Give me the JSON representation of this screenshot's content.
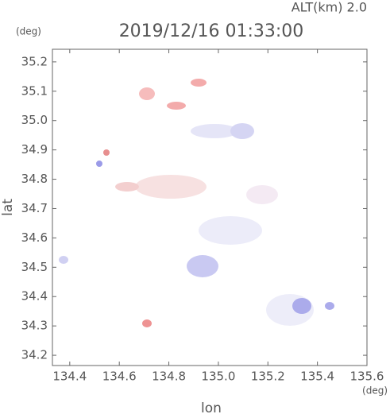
{
  "chart_data": {
    "type": "map",
    "title": "2019/12/16 01:33:00",
    "subtitle": "ALT(km) 2.0",
    "x_label": "lon",
    "x_unit": "(deg)",
    "y_label": "lat",
    "y_unit": "(deg)",
    "xlim": [
      134.33,
      135.6
    ],
    "xticks": [
      134.4,
      134.6,
      134.8,
      {
        "value": 135,
        "label": "135.0"
      },
      135.2,
      135.4,
      135.6
    ],
    "ylim": [
      34.165,
      35.243
    ],
    "yticks": [
      34.2,
      34.3,
      34.4,
      34.5,
      34.6,
      34.7,
      34.8,
      34.9,
      {
        "value": 35,
        "label": "35.0"
      },
      35.1,
      35.2
    ]
  }
}
